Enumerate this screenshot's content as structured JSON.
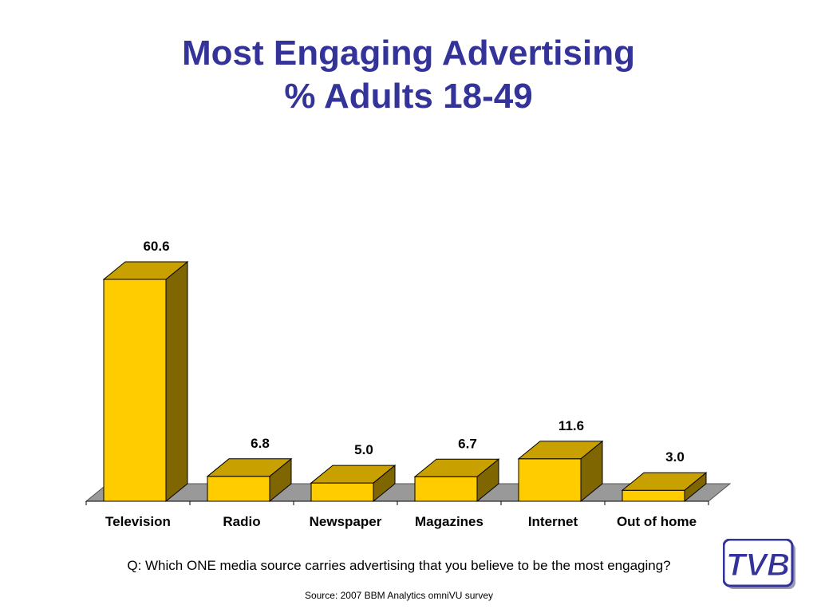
{
  "title": {
    "line1": "Most Engaging Advertising",
    "line2": "% Adults 18-49"
  },
  "chart_data": {
    "type": "bar",
    "categories": [
      "Television",
      "Radio",
      "Newspaper",
      "Magazines",
      "Internet",
      "Out of home"
    ],
    "values": [
      60.6,
      6.8,
      5.0,
      6.7,
      11.6,
      3.0
    ],
    "value_labels": [
      "60.6",
      "6.8",
      "5.0",
      "6.7",
      "11.6",
      "3.0"
    ],
    "ylim": [
      0,
      60.6
    ],
    "grid": false,
    "legend": "none",
    "colors": {
      "front": "#FFCC00",
      "top": "#C8A000",
      "side": "#806600",
      "floor": "#999999"
    }
  },
  "question": "Q: Which ONE media source carries advertising that you believe to be the most engaging?",
  "source": "Source: 2007 BBM Analytics omniVU survey",
  "logo": {
    "text": "TVB",
    "icon": "tvb-logo",
    "color": "#333399"
  },
  "colors": {
    "title": "#333399"
  }
}
